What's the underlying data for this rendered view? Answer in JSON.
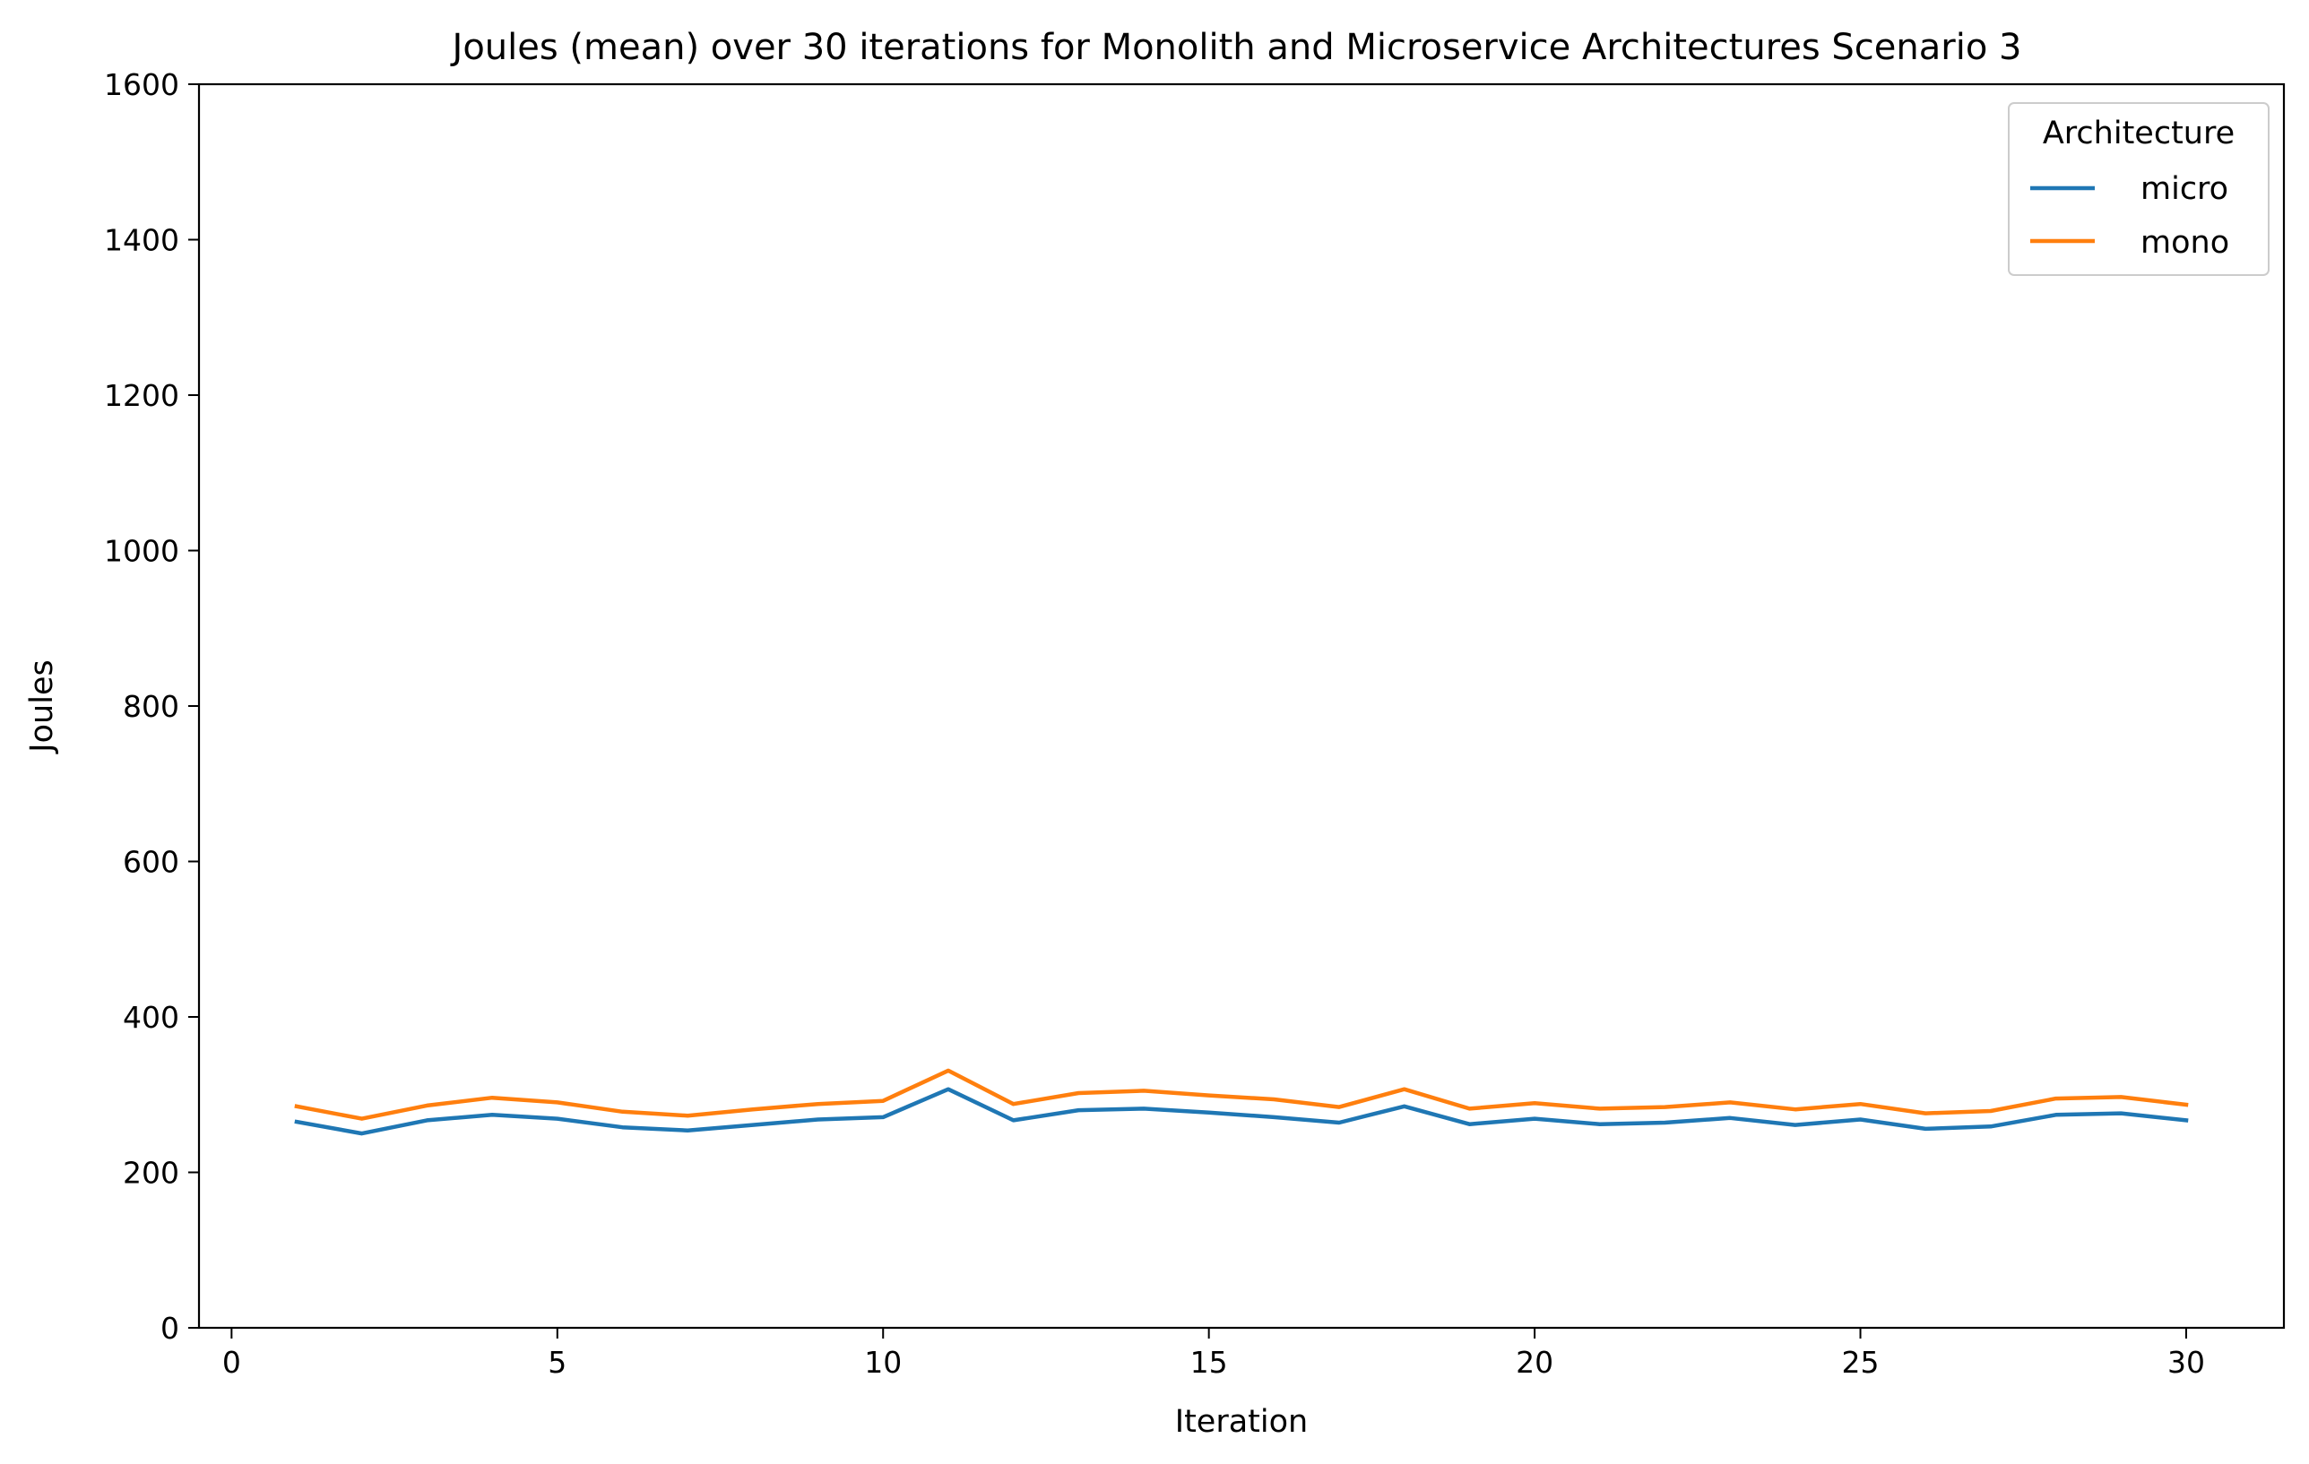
{
  "chart_data": {
    "type": "line",
    "title": "Joules (mean) over 30 iterations for Monolith and Microservice Architectures Scenario 3",
    "xlabel": "Iteration",
    "ylabel": "Joules",
    "xlim": [
      -0.5,
      31.5
    ],
    "ylim": [
      0,
      1600
    ],
    "xticks": [
      0,
      5,
      10,
      15,
      20,
      25,
      30
    ],
    "yticks": [
      0,
      200,
      400,
      600,
      800,
      1000,
      1200,
      1400,
      1600
    ],
    "grid": false,
    "legend": {
      "title": "Architecture",
      "placement": "top-right"
    },
    "x": [
      1,
      2,
      3,
      4,
      5,
      6,
      7,
      8,
      9,
      10,
      11,
      12,
      13,
      14,
      15,
      16,
      17,
      18,
      19,
      20,
      21,
      22,
      23,
      24,
      25,
      26,
      27,
      28,
      29,
      30
    ],
    "series": [
      {
        "name": "micro",
        "color": "#1f77b4",
        "values": [
          265,
          250,
          267,
          274,
          269,
          258,
          254,
          261,
          268,
          271,
          307,
          267,
          280,
          282,
          277,
          271,
          264,
          285,
          262,
          269,
          262,
          264,
          270,
          261,
          268,
          256,
          259,
          274,
          276,
          267
        ]
      },
      {
        "name": "mono",
        "color": "#ff7f0e",
        "values": [
          285,
          269,
          286,
          296,
          290,
          278,
          273,
          281,
          288,
          292,
          331,
          288,
          302,
          305,
          299,
          294,
          284,
          307,
          282,
          289,
          282,
          284,
          290,
          281,
          288,
          276,
          279,
          295,
          297,
          287
        ]
      }
    ]
  }
}
